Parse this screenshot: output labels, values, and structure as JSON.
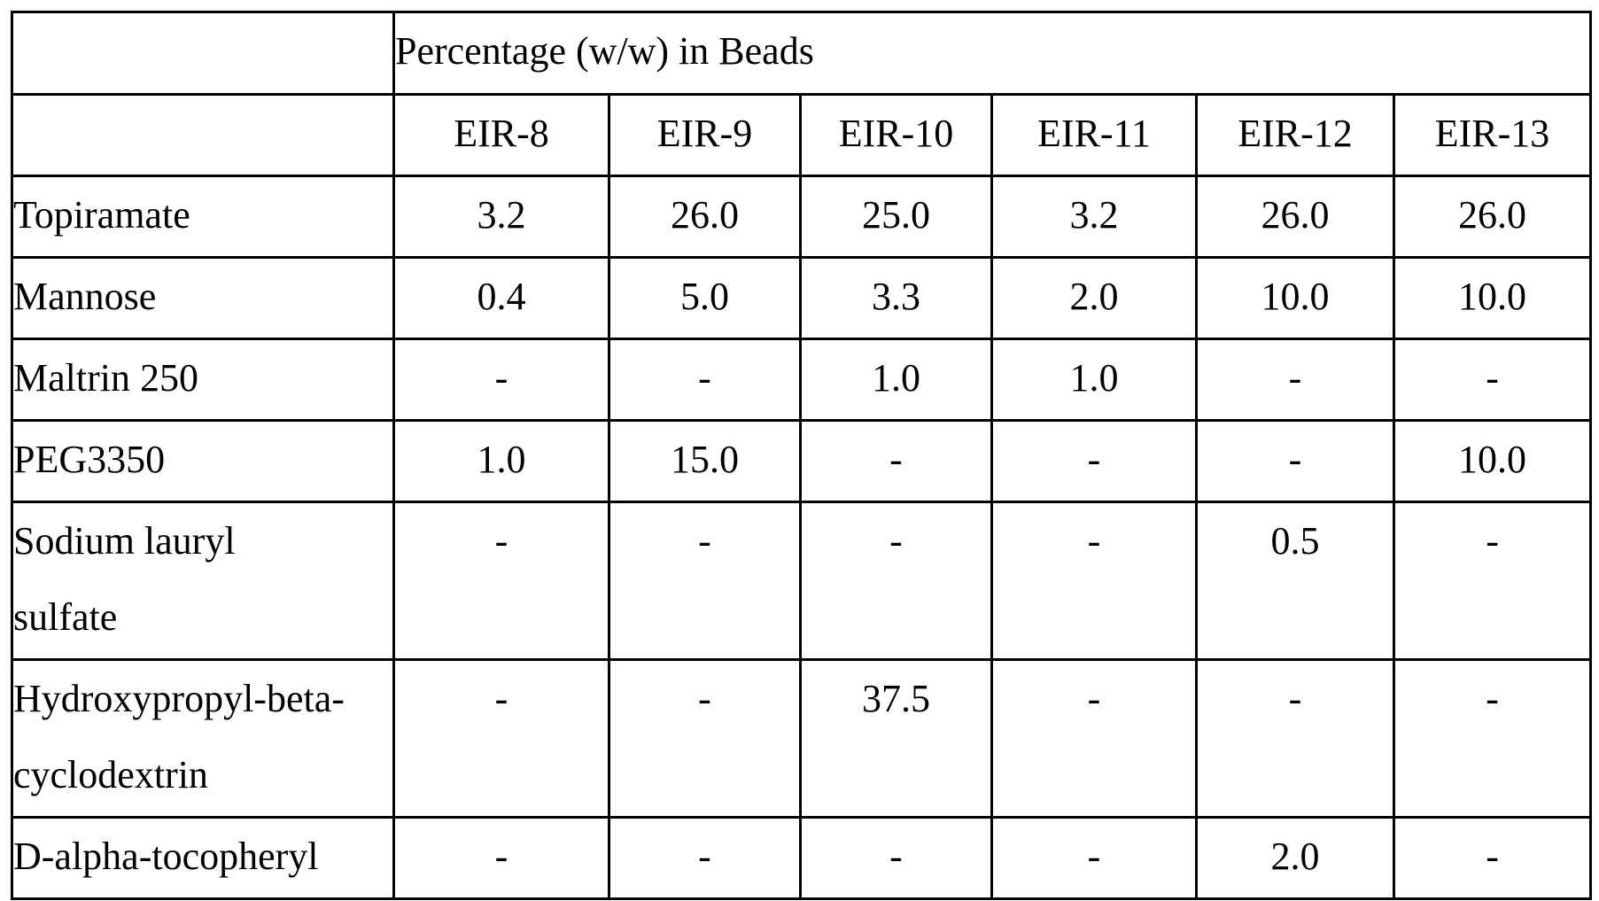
{
  "table": {
    "group_header": "Percentage (w/w) in Beads",
    "columns": [
      "EIR-8",
      "EIR-9",
      "EIR-10",
      "EIR-11",
      "EIR-12",
      "EIR-13"
    ],
    "rows": [
      {
        "label_lines": [
          "Topiramate"
        ],
        "values": [
          "3.2",
          "26.0",
          "25.0",
          "3.2",
          "26.0",
          "26.0"
        ]
      },
      {
        "label_lines": [
          "Mannose"
        ],
        "values": [
          "0.4",
          "5.0",
          "3.3",
          "2.0",
          "10.0",
          "10.0"
        ]
      },
      {
        "label_lines": [
          "Maltrin 250"
        ],
        "values": [
          "-",
          "-",
          "1.0",
          "1.0",
          "-",
          "-"
        ]
      },
      {
        "label_lines": [
          "PEG3350"
        ],
        "values": [
          "1.0",
          "15.0",
          "-",
          "-",
          "-",
          "10.0"
        ]
      },
      {
        "label_lines": [
          "Sodium lauryl",
          "sulfate"
        ],
        "values": [
          "-",
          "-",
          "-",
          "-",
          "0.5",
          "-"
        ]
      },
      {
        "label_lines": [
          "Hydroxypropyl-beta-",
          "cyclodextrin"
        ],
        "values": [
          "-",
          "-",
          "37.5",
          "-",
          "-",
          "-"
        ]
      },
      {
        "label_lines": [
          "D-alpha-tocopheryl"
        ],
        "values": [
          "-",
          "-",
          "-",
          "-",
          "2.0",
          "-"
        ]
      }
    ]
  }
}
